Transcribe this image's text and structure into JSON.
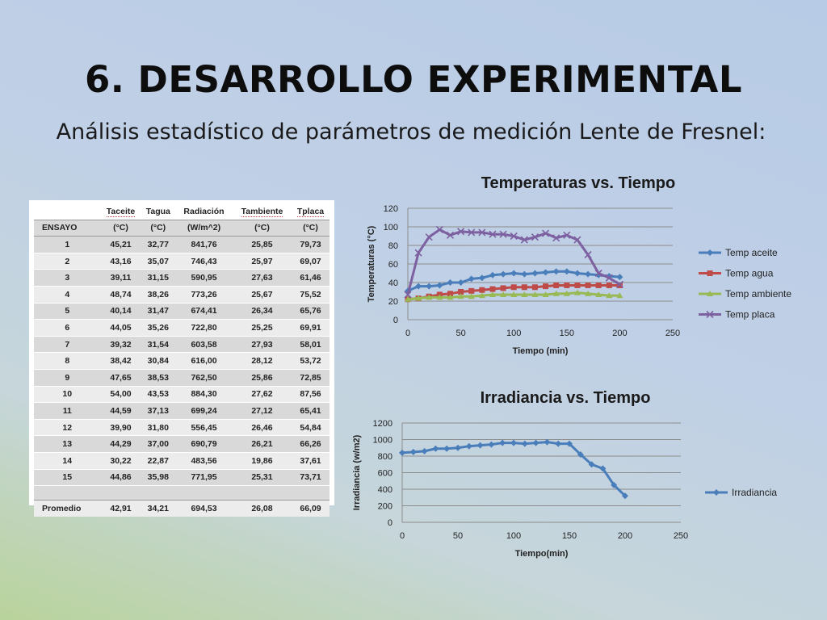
{
  "slide": {
    "title": "6. DESARROLLO EXPERIMENTAL",
    "subtitle": "Análisis estadístico de parámetros de medición Lente de Fresnel:"
  },
  "table": {
    "headers": [
      "",
      "Taceite",
      "Tagua",
      "Radiación",
      "Tambiente",
      "Tplaca"
    ],
    "units": [
      "ENSAYO",
      "(°C)",
      "(°C)",
      "(W/m^2)",
      "(°C)",
      "(°C)"
    ],
    "rows": [
      [
        "1",
        "45,21",
        "32,77",
        "841,76",
        "25,85",
        "79,73"
      ],
      [
        "2",
        "43,16",
        "35,07",
        "746,43",
        "25,97",
        "69,07"
      ],
      [
        "3",
        "39,11",
        "31,15",
        "590,95",
        "27,63",
        "61,46"
      ],
      [
        "4",
        "48,74",
        "38,26",
        "773,26",
        "25,67",
        "75,52"
      ],
      [
        "5",
        "40,14",
        "31,47",
        "674,41",
        "26,34",
        "65,76"
      ],
      [
        "6",
        "44,05",
        "35,26",
        "722,80",
        "25,25",
        "69,91"
      ],
      [
        "7",
        "39,32",
        "31,54",
        "603,58",
        "27,93",
        "58,01"
      ],
      [
        "8",
        "38,42",
        "30,84",
        "616,00",
        "28,12",
        "53,72"
      ],
      [
        "9",
        "47,65",
        "38,53",
        "762,50",
        "25,86",
        "72,85"
      ],
      [
        "10",
        "54,00",
        "43,53",
        "884,30",
        "27,62",
        "87,56"
      ],
      [
        "11",
        "44,59",
        "37,13",
        "699,24",
        "27,12",
        "65,41"
      ],
      [
        "12",
        "39,90",
        "31,80",
        "556,45",
        "26,46",
        "54,84"
      ],
      [
        "13",
        "44,29",
        "37,00",
        "690,79",
        "26,21",
        "66,26"
      ],
      [
        "14",
        "30,22",
        "22,87",
        "483,56",
        "19,86",
        "37,61"
      ],
      [
        "15",
        "44,86",
        "35,98",
        "771,95",
        "25,31",
        "73,71"
      ]
    ],
    "average": [
      "Promedio",
      "42,91",
      "34,21",
      "694,53",
      "26,08",
      "66,09"
    ]
  },
  "chart_data": [
    {
      "type": "line",
      "title": "Temperaturas vs. Tiempo",
      "xlabel": "Tiempo (min)",
      "ylabel": "Temperaturas (°C)",
      "xlim": [
        0,
        250
      ],
      "ylim": [
        0,
        120
      ],
      "xticks": [
        0,
        50,
        100,
        150,
        200,
        250
      ],
      "yticks": [
        0,
        20,
        40,
        60,
        80,
        100,
        120
      ],
      "grid": true,
      "legend": "right",
      "x": [
        0,
        10,
        20,
        30,
        40,
        50,
        60,
        70,
        80,
        90,
        100,
        110,
        120,
        130,
        140,
        150,
        160,
        170,
        180,
        190,
        200
      ],
      "series": [
        {
          "name": "Temp aceite",
          "color": "#4a7ebb",
          "marker": "diamond",
          "values": [
            31,
            36,
            36,
            37,
            40,
            40,
            44,
            45,
            48,
            49,
            50,
            49,
            50,
            51,
            52,
            52,
            50,
            49,
            48,
            47,
            46
          ]
        },
        {
          "name": "Temp agua",
          "color": "#be4b48",
          "marker": "square",
          "values": [
            22,
            23,
            25,
            27,
            28,
            30,
            31,
            32,
            33,
            34,
            35,
            35,
            35,
            36,
            37,
            37,
            37,
            37,
            37,
            37,
            37
          ]
        },
        {
          "name": "Temp ambiente",
          "color": "#98b954",
          "marker": "triangle",
          "values": [
            22,
            23,
            24,
            24,
            24,
            25,
            25,
            26,
            27,
            27,
            27,
            27,
            27,
            27,
            28,
            28,
            29,
            28,
            27,
            26,
            26
          ]
        },
        {
          "name": "Temp placa",
          "color": "#7d60a0",
          "marker": "x",
          "values": [
            27,
            72,
            89,
            97,
            91,
            95,
            94,
            94,
            92,
            92,
            90,
            86,
            89,
            93,
            88,
            91,
            86,
            70,
            50,
            45,
            38
          ]
        }
      ]
    },
    {
      "type": "line",
      "title": "Irradiancia vs. Tiempo",
      "xlabel": "Tiempo(min)",
      "ylabel": "Irradiancia (w/m2)",
      "xlim": [
        0,
        250
      ],
      "ylim": [
        0,
        1200
      ],
      "xticks": [
        0,
        50,
        100,
        150,
        200,
        250
      ],
      "yticks": [
        0,
        200,
        400,
        600,
        800,
        1000,
        1200
      ],
      "grid": true,
      "legend": "right",
      "x": [
        0,
        10,
        20,
        30,
        40,
        50,
        60,
        70,
        80,
        90,
        100,
        110,
        120,
        130,
        140,
        150,
        160,
        170,
        180,
        190,
        200
      ],
      "series": [
        {
          "name": "Irradiancia",
          "color": "#4a7ebb",
          "marker": "diamond",
          "values": [
            840,
            850,
            860,
            890,
            890,
            900,
            920,
            930,
            940,
            960,
            960,
            950,
            960,
            970,
            950,
            950,
            820,
            700,
            650,
            450,
            320
          ]
        }
      ]
    }
  ]
}
